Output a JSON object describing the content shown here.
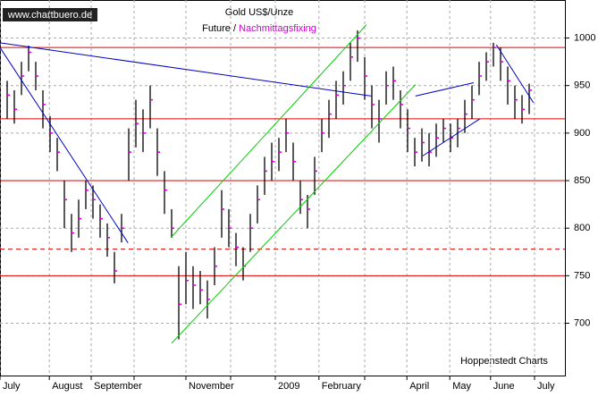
{
  "chart_data": {
    "type": "ohlc",
    "title": "Gold US$/Unze",
    "subtitle": [
      "Future /",
      "Nachmittagsfixing"
    ],
    "subtitle_colors": [
      "#000000",
      "#d000d0"
    ],
    "watermark": "www.chartbuero.de",
    "source": "Hoppenstedt Charts",
    "x": [
      1,
      2,
      3,
      4,
      5,
      6,
      7,
      8,
      9,
      10,
      11,
      12,
      13,
      14,
      15,
      16,
      17,
      18,
      19,
      20,
      21,
      22,
      23,
      24,
      25,
      26,
      27,
      28,
      29,
      30,
      31,
      32,
      33,
      34,
      35,
      36,
      37,
      38,
      39,
      40,
      41,
      42,
      43,
      44,
      45,
      46,
      47,
      48,
      49,
      50,
      51,
      52,
      53,
      54,
      55,
      56,
      57,
      58,
      59,
      60,
      61,
      62,
      63,
      64,
      65,
      66,
      67,
      68,
      69,
      70,
      71,
      72,
      73,
      74
    ],
    "high": [
      955,
      945,
      975,
      992,
      975,
      945,
      918,
      895,
      850,
      815,
      830,
      850,
      845,
      825,
      805,
      775,
      815,
      905,
      935,
      925,
      950,
      905,
      860,
      820,
      760,
      775,
      760,
      755,
      745,
      780,
      840,
      820,
      795,
      780,
      815,
      845,
      875,
      890,
      895,
      915,
      890,
      850,
      835,
      875,
      915,
      935,
      955,
      965,
      995,
      1008,
      980,
      950,
      935,
      965,
      970,
      945,
      925,
      895,
      905,
      900,
      910,
      915,
      910,
      915,
      935,
      950,
      975,
      985,
      995,
      990,
      970,
      950,
      940,
      952
    ],
    "low": [
      915,
      910,
      940,
      965,
      945,
      905,
      880,
      860,
      800,
      775,
      790,
      820,
      810,
      790,
      770,
      742,
      785,
      850,
      885,
      880,
      905,
      855,
      815,
      790,
      683,
      720,
      715,
      720,
      705,
      740,
      790,
      780,
      760,
      745,
      775,
      805,
      835,
      850,
      860,
      880,
      850,
      815,
      800,
      835,
      880,
      895,
      915,
      930,
      955,
      975,
      935,
      905,
      890,
      930,
      935,
      905,
      880,
      865,
      870,
      865,
      875,
      890,
      880,
      885,
      900,
      915,
      940,
      955,
      970,
      955,
      930,
      915,
      910,
      920
    ],
    "close": [
      940,
      925,
      960,
      985,
      960,
      930,
      900,
      880,
      830,
      795,
      810,
      840,
      830,
      810,
      790,
      755,
      800,
      880,
      910,
      900,
      935,
      880,
      840,
      800,
      720,
      745,
      740,
      735,
      725,
      760,
      820,
      800,
      780,
      760,
      800,
      830,
      860,
      870,
      880,
      900,
      870,
      830,
      820,
      860,
      900,
      920,
      940,
      950,
      980,
      1000,
      960,
      930,
      915,
      950,
      955,
      930,
      905,
      880,
      890,
      880,
      895,
      905,
      895,
      905,
      920,
      935,
      960,
      975,
      990,
      975,
      955,
      935,
      925,
      945
    ],
    "bar_color": "#000000",
    "close_color": "#d000d0",
    "xlim": [
      0,
      79
    ],
    "ylim": [
      645,
      1040
    ],
    "yticks": [
      700,
      750,
      800,
      850,
      900,
      950,
      1000
    ],
    "xticks": [
      {
        "value": 0,
        "label": "July"
      },
      {
        "value": 6.9,
        "label": "August"
      },
      {
        "value": 12.75,
        "label": "September"
      },
      {
        "value": 26,
        "label": "November"
      },
      {
        "value": 38.5,
        "label": "2009"
      },
      {
        "value": 44.6,
        "label": "February"
      },
      {
        "value": 56.9,
        "label": "April"
      },
      {
        "value": 62.9,
        "label": "May"
      },
      {
        "value": 68.6,
        "label": "June"
      },
      {
        "value": 74.75,
        "label": "July"
      }
    ],
    "xgrid": [
      18.75,
      32.25,
      51
    ],
    "grid": true,
    "hlines": [
      990,
      915,
      850,
      750
    ],
    "hline_color": "#e00000",
    "dashed_hlines": [
      778
    ],
    "trendlines": [
      {
        "x": [
          0,
          17.9
        ],
        "y": [
          990,
          784.6
        ],
        "color": "#0000c0"
      },
      {
        "x": [
          0,
          51.9
        ],
        "y": [
          995,
          939
        ],
        "color": "#0000c0"
      },
      {
        "x": [
          24,
          58.1
        ],
        "y": [
          679,
          951
        ],
        "color": "#00d000"
      },
      {
        "x": [
          24,
          51.25
        ],
        "y": [
          791,
          1014
        ],
        "color": "#00d000"
      },
      {
        "x": [
          58.1,
          66.25
        ],
        "y": [
          939,
          953
        ],
        "color": "#0000c0"
      },
      {
        "x": [
          59.1,
          67.1
        ],
        "y": [
          876,
          915
        ],
        "color": "#0000c0"
      },
      {
        "x": [
          69.4,
          74.6
        ],
        "y": [
          993,
          932
        ],
        "color": "#0000c0"
      }
    ]
  }
}
